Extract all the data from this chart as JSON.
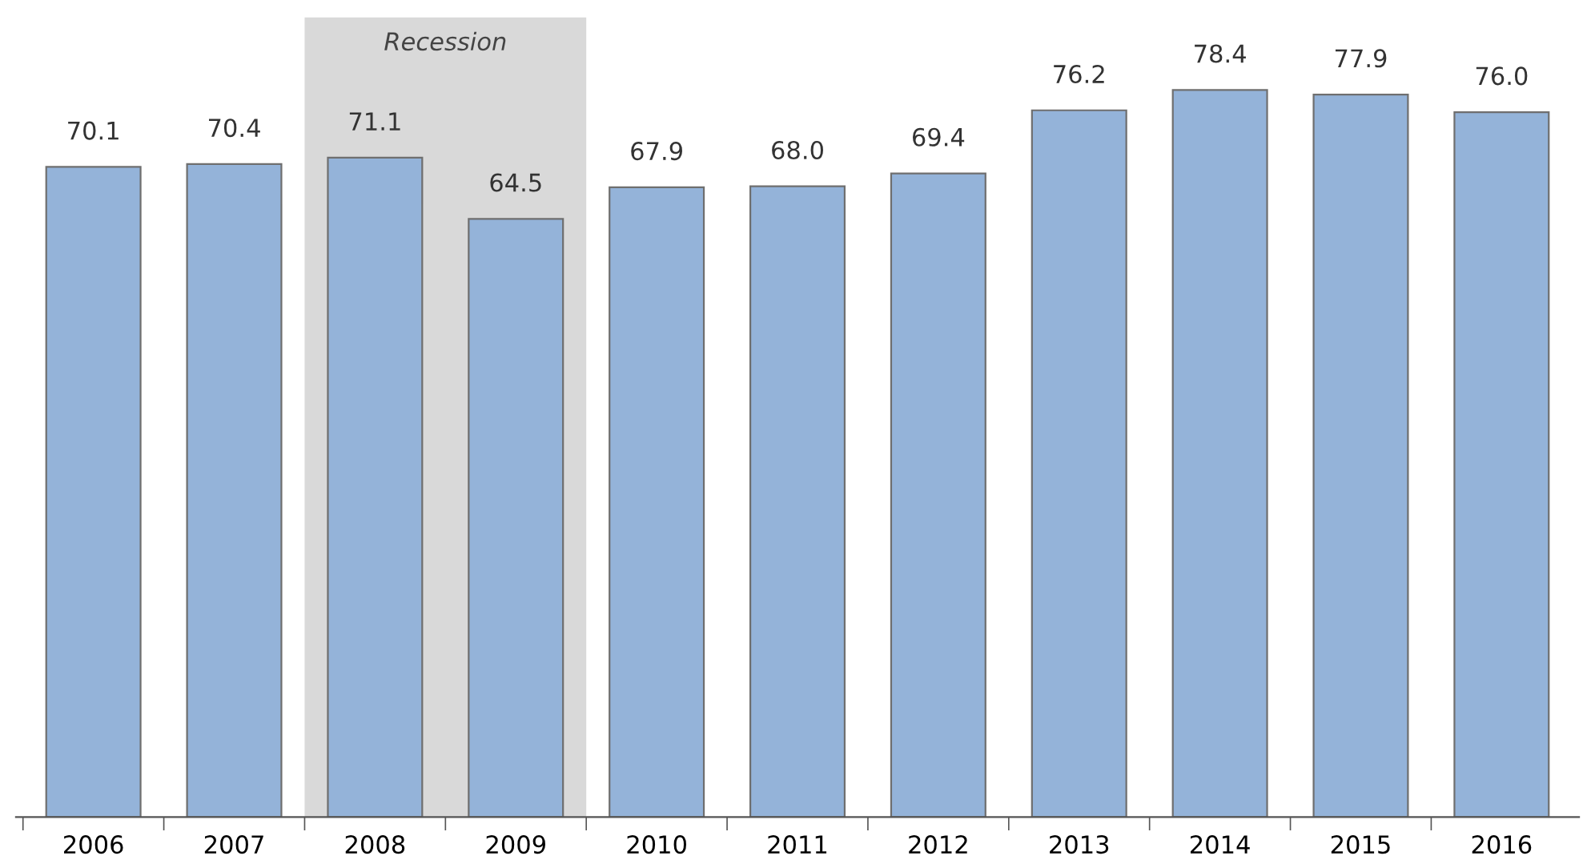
{
  "chart_data": {
    "type": "bar",
    "categories": [
      "2006",
      "2007",
      "2008",
      "2009",
      "2010",
      "2011",
      "2012",
      "2013",
      "2014",
      "2015",
      "2016"
    ],
    "values": [
      70.1,
      70.4,
      71.1,
      64.5,
      67.9,
      68.0,
      69.4,
      76.2,
      78.4,
      77.9,
      76.0
    ],
    "color": "#94b3d9",
    "value_labels": [
      "70.1",
      "70.4",
      "71.1",
      "64.5",
      "67.9",
      "68.0",
      "69.4",
      "76.2",
      "78.4",
      "77.9",
      "76.0"
    ],
    "bands": [
      {
        "axis": "x",
        "from": "2008",
        "to": "2009",
        "label": "Recession",
        "color": "#d9d9d9"
      }
    ],
    "grid": false
  }
}
